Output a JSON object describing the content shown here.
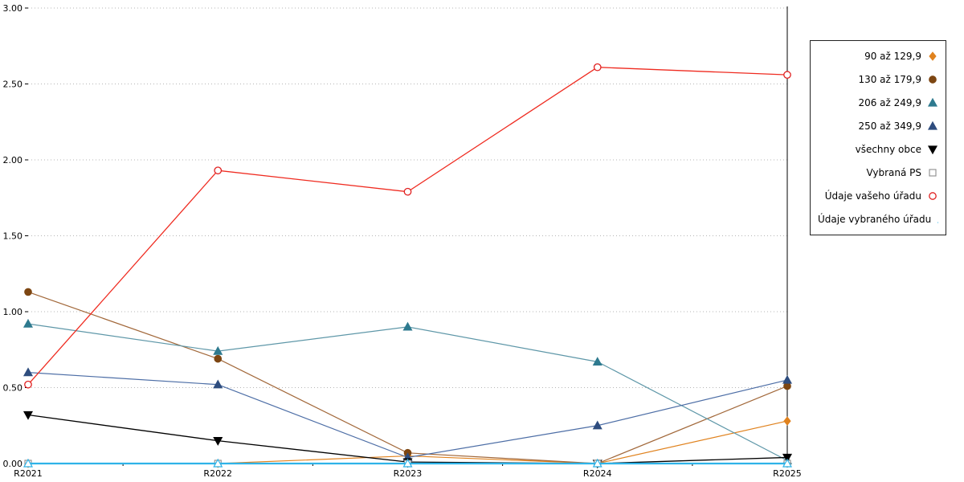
{
  "chart_data": {
    "type": "line",
    "title": "",
    "xlabel": "",
    "ylabel": "",
    "x": [
      "R2021",
      "R2022",
      "R2023",
      "R2024",
      "R2025"
    ],
    "ylim": [
      0,
      3
    ],
    "yticks": [
      0,
      0.5,
      1,
      1.5,
      2,
      2.5,
      3
    ],
    "ytick_labels": [
      "0.00",
      "0.50",
      "1.00",
      "1.50",
      "2.00",
      "2.50",
      "3.00"
    ],
    "grid": "dotted-horizontal",
    "legend_position": "top-right",
    "series": [
      {
        "name": "90 až 129,9",
        "marker": "diamond",
        "open": false,
        "color": "#e0821e",
        "line_color": "#e0821e",
        "line_width": 1.2,
        "values": [
          0,
          0,
          0.05,
          0,
          0.28
        ]
      },
      {
        "name": "130 až 179,9",
        "marker": "circle",
        "open": false,
        "color": "#7d4612",
        "line_color": "#a2683a",
        "line_width": 1.2,
        "values": [
          1.13,
          0.69,
          0.07,
          0,
          0.51
        ]
      },
      {
        "name": "206 až 249,9",
        "marker": "triangle-up",
        "open": false,
        "color": "#2e7a8f",
        "line_color": "#5e97a8",
        "line_width": 1.2,
        "values": [
          0.92,
          0.74,
          0.9,
          0.67,
          0.02
        ]
      },
      {
        "name": "250 až 349,9",
        "marker": "triangle-up",
        "open": false,
        "color": "#2e4d7e",
        "line_color": "#4d6ea6",
        "line_width": 1.2,
        "values": [
          0.6,
          0.52,
          0.04,
          0.25,
          0.55
        ]
      },
      {
        "name": "všechny obce",
        "marker": "triangle-down",
        "open": false,
        "color": "#000000",
        "line_color": "#000000",
        "line_width": 1.3,
        "values": [
          0.32,
          0.15,
          0.01,
          0,
          0.04
        ]
      },
      {
        "name": "Vybraná PS",
        "marker": "square",
        "open": true,
        "color": "#8c8c8c",
        "line_color": "#b5b5b5",
        "line_width": 1.0,
        "values": [
          0,
          0,
          0,
          0,
          0
        ]
      },
      {
        "name": "Údaje vašeho úřadu",
        "marker": "circle",
        "open": true,
        "color": "#e02020",
        "line_color": "#ef2b20",
        "line_width": 1.3,
        "values": [
          0.52,
          1.93,
          1.79,
          2.61,
          2.56
        ]
      },
      {
        "name": "Údaje vybraného úřadu",
        "marker": "triangle-up",
        "open": true,
        "color": "#2fb3e8",
        "line_color": "#2fb3e8",
        "line_width": 2.2,
        "values": [
          0,
          0,
          0,
          0,
          0
        ]
      }
    ]
  }
}
